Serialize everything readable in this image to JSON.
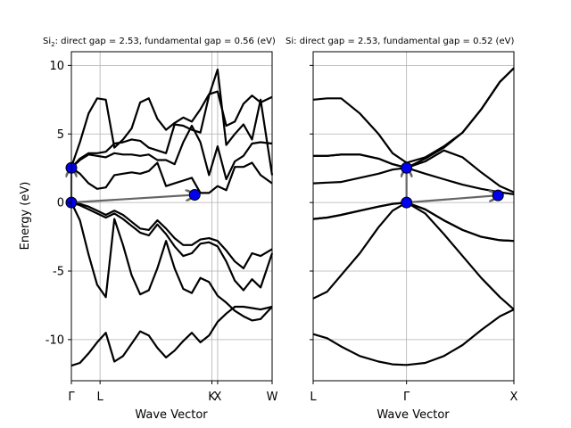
{
  "chart_data": [
    {
      "type": "line",
      "title": "Si$_2$: direct gap = 2.53, fundamental gap = 0.56 (eV)",
      "title_main": "Si",
      "title_sub": "2",
      "title_rest": ": direct gap = 2.53, fundamental gap = 0.56 (eV)",
      "xlabel": "Wave Vector",
      "ylabel": "Energy (eV)",
      "ylim": [
        -13,
        11
      ],
      "xlim": [
        0,
        7.0
      ],
      "yticks": [
        -10,
        -5,
        0,
        5,
        10
      ],
      "kpoints": [
        {
          "label": "Γ",
          "x": 0
        },
        {
          "label": "L",
          "x": 1.0
        },
        {
          "label": "K",
          "x": 4.9
        },
        {
          "label": "X",
          "x": 5.1
        },
        {
          "label": "W",
          "x": 7.0
        }
      ],
      "bands": [
        {
          "x": [
            0,
            0.3,
            0.6,
            0.9,
            1.2,
            1.5,
            1.8,
            2.1,
            2.4,
            2.7,
            3.0,
            3.3,
            3.6,
            3.9,
            4.2,
            4.5,
            4.8,
            5.1,
            5.4,
            5.7,
            6.0,
            6.3,
            6.6,
            7.0
          ],
          "y": [
            -11.9,
            -11.7,
            -11.0,
            -10.2,
            -9.5,
            -11.6,
            -11.2,
            -10.3,
            -9.4,
            -9.7,
            -10.6,
            -11.3,
            -10.8,
            -10.1,
            -9.5,
            -10.2,
            -9.7,
            -8.7,
            -8.1,
            -7.6,
            -7.6,
            -7.7,
            -7.8,
            -7.6
          ]
        },
        {
          "x": [
            0,
            0.3,
            0.6,
            0.9,
            1.2,
            1.5,
            1.8,
            2.1,
            2.4,
            2.7,
            3.0,
            3.3,
            3.6,
            3.9,
            4.2,
            4.5,
            4.8,
            5.1,
            5.4,
            5.7,
            6.0,
            6.3,
            6.6,
            7.0
          ],
          "y": [
            0,
            -1.3,
            -3.8,
            -6.0,
            -6.9,
            -1.2,
            -3.1,
            -5.3,
            -6.7,
            -6.4,
            -4.8,
            -2.8,
            -4.8,
            -6.3,
            -6.6,
            -5.5,
            -5.8,
            -6.8,
            -7.3,
            -7.9,
            -8.3,
            -8.6,
            -8.5,
            -7.6
          ]
        },
        {
          "x": [
            0,
            0.3,
            0.6,
            0.9,
            1.2,
            1.5,
            1.8,
            2.1,
            2.4,
            2.7,
            3.0,
            3.3,
            3.6,
            3.9,
            4.2,
            4.5,
            4.8,
            5.1,
            5.4,
            5.7,
            6.0,
            6.3,
            6.6,
            7.0
          ],
          "y": [
            0,
            -0.2,
            -0.5,
            -0.8,
            -1.1,
            -0.8,
            -1.2,
            -1.7,
            -2.2,
            -2.4,
            -1.6,
            -2.3,
            -3.2,
            -3.9,
            -3.7,
            -3.0,
            -2.9,
            -3.2,
            -4.3,
            -5.7,
            -6.4,
            -5.6,
            -6.2,
            -3.7
          ]
        },
        {
          "x": [
            0,
            0.3,
            0.6,
            0.9,
            1.2,
            1.5,
            1.8,
            2.1,
            2.4,
            2.7,
            3.0,
            3.3,
            3.6,
            3.9,
            4.2,
            4.5,
            4.8,
            5.1,
            5.4,
            5.7,
            6.0,
            6.3,
            6.6,
            7.0
          ],
          "y": [
            0,
            -0.1,
            -0.3,
            -0.6,
            -0.9,
            -0.6,
            -0.9,
            -1.4,
            -1.9,
            -2.0,
            -1.3,
            -1.9,
            -2.6,
            -3.1,
            -3.1,
            -2.7,
            -2.6,
            -2.8,
            -3.5,
            -4.3,
            -4.8,
            -3.7,
            -3.9,
            -3.4
          ]
        },
        {
          "x": [
            0,
            0.3,
            0.6,
            0.9,
            1.2,
            1.5,
            1.8,
            2.1,
            2.4,
            2.7,
            3.0,
            3.3,
            3.6,
            3.9,
            4.2,
            4.5,
            4.8,
            5.1,
            5.4,
            5.7,
            6.0,
            6.3,
            6.6,
            7.0
          ],
          "y": [
            2.53,
            2.1,
            1.4,
            1.0,
            1.1,
            2.0,
            2.1,
            2.2,
            2.1,
            2.3,
            2.9,
            1.2,
            1.4,
            1.6,
            1.8,
            0.7,
            0.7,
            1.2,
            0.9,
            2.6,
            2.6,
            2.9,
            2.0,
            1.4
          ]
        },
        {
          "x": [
            0,
            0.3,
            0.6,
            0.9,
            1.2,
            1.5,
            1.8,
            2.1,
            2.4,
            2.7,
            3.0,
            3.3,
            3.6,
            3.9,
            4.2,
            4.5,
            4.8,
            5.1,
            5.4,
            5.7,
            6.0,
            6.3,
            6.6,
            7.0
          ],
          "y": [
            2.53,
            3.1,
            3.5,
            3.4,
            3.3,
            3.6,
            3.5,
            3.5,
            3.4,
            3.5,
            3.1,
            3.1,
            2.8,
            4.4,
            5.6,
            4.4,
            2.0,
            4.1,
            1.7,
            3.0,
            3.4,
            4.3,
            4.4,
            4.3
          ]
        },
        {
          "x": [
            0,
            0.3,
            0.6,
            0.9,
            1.2,
            1.5,
            1.8,
            2.1,
            2.4,
            2.7,
            3.0,
            3.3,
            3.6,
            3.9,
            4.2,
            4.5,
            4.8,
            5.1,
            5.4,
            5.7,
            6.0,
            6.3,
            6.6,
            7.0
          ],
          "y": [
            2.53,
            3.2,
            3.6,
            3.6,
            3.7,
            4.3,
            4.4,
            4.6,
            4.5,
            4.0,
            3.8,
            3.6,
            5.7,
            5.6,
            5.3,
            5.1,
            7.8,
            9.7,
            4.2,
            5.0,
            5.7,
            4.6,
            7.5,
            2.0
          ]
        },
        {
          "x": [
            0,
            0.3,
            0.6,
            0.9,
            1.2,
            1.5,
            1.8,
            2.1,
            2.4,
            2.7,
            3.0,
            3.3,
            3.6,
            3.9,
            4.2,
            4.5,
            4.8,
            5.1,
            5.4,
            5.7,
            6.0,
            6.3,
            6.6,
            7.0
          ],
          "y": [
            2.6,
            4.4,
            6.5,
            7.6,
            7.5,
            4.0,
            4.6,
            5.4,
            7.3,
            7.6,
            6.1,
            5.3,
            5.8,
            6.2,
            5.9,
            6.8,
            7.9,
            8.1,
            5.6,
            5.9,
            7.2,
            7.8,
            7.3,
            7.7
          ]
        }
      ],
      "markers": [
        {
          "x": 0,
          "y": 0
        },
        {
          "x": 0,
          "y": 2.53
        },
        {
          "x": 4.3,
          "y": 0.56
        }
      ],
      "arrows": [
        {
          "from": [
            0,
            0
          ],
          "to": [
            0,
            2.53
          ]
        },
        {
          "from": [
            0,
            0
          ],
          "to": [
            4.3,
            0.56
          ]
        }
      ]
    },
    {
      "type": "line",
      "title": "Si: direct gap = 2.53, fundamental gap = 0.52 (eV)",
      "title_main": "Si",
      "title_sub": "",
      "title_rest": ": direct gap = 2.53, fundamental gap = 0.52 (eV)",
      "xlabel": "Wave Vector",
      "ylabel": "",
      "ylim": [
        -13,
        11
      ],
      "xlim": [
        0,
        2.15
      ],
      "yticks": [
        -10,
        -5,
        0,
        5,
        10
      ],
      "kpoints": [
        {
          "label": "L",
          "x": 0
        },
        {
          "label": "Γ",
          "x": 1.0
        },
        {
          "label": "X",
          "x": 2.15
        }
      ],
      "bands": [
        {
          "x": [
            0,
            0.15,
            0.3,
            0.5,
            0.7,
            0.85,
            1.0,
            1.2,
            1.4,
            1.6,
            1.8,
            2.0,
            2.15
          ],
          "y": [
            -9.6,
            -9.9,
            -10.5,
            -11.2,
            -11.6,
            -11.8,
            -11.85,
            -11.7,
            -11.2,
            -10.4,
            -9.3,
            -8.3,
            -7.8
          ]
        },
        {
          "x": [
            0,
            0.15,
            0.3,
            0.5,
            0.7,
            0.85,
            1.0,
            1.2,
            1.4,
            1.6,
            1.8,
            2.0,
            2.15
          ],
          "y": [
            -7.0,
            -6.5,
            -5.3,
            -3.7,
            -1.8,
            -0.6,
            0,
            -0.8,
            -2.3,
            -3.9,
            -5.5,
            -6.9,
            -7.8
          ]
        },
        {
          "x": [
            0,
            0.15,
            0.3,
            0.5,
            0.7,
            0.85,
            1.0,
            1.2,
            1.4,
            1.6,
            1.8,
            2.0,
            2.15
          ],
          "y": [
            -1.2,
            -1.1,
            -0.9,
            -0.6,
            -0.3,
            -0.1,
            0,
            -0.5,
            -1.3,
            -2.0,
            -2.5,
            -2.75,
            -2.8
          ]
        },
        {
          "x": [
            0,
            0.15,
            0.3,
            0.5,
            0.7,
            0.85,
            1.0,
            1.2,
            1.4,
            1.6,
            1.8,
            2.0,
            2.15
          ],
          "y": [
            -1.2,
            -1.1,
            -0.9,
            -0.6,
            -0.3,
            -0.1,
            0,
            -0.5,
            -1.3,
            -2.0,
            -2.5,
            -2.75,
            -2.8
          ]
        },
        {
          "x": [
            0,
            0.15,
            0.3,
            0.5,
            0.7,
            0.85,
            1.0,
            1.2,
            1.4,
            1.6,
            1.8,
            2.0,
            2.15
          ],
          "y": [
            1.4,
            1.45,
            1.5,
            1.8,
            2.1,
            2.4,
            2.53,
            2.1,
            1.7,
            1.3,
            1.0,
            0.75,
            0.6
          ]
        },
        {
          "x": [
            0,
            0.15,
            0.3,
            0.5,
            0.7,
            0.85,
            1.0,
            1.2,
            1.4,
            1.6,
            1.8,
            2.0,
            2.15
          ],
          "y": [
            3.4,
            3.4,
            3.5,
            3.5,
            3.2,
            2.8,
            2.53,
            3.0,
            3.8,
            3.3,
            2.2,
            1.2,
            0.75
          ]
        },
        {
          "x": [
            0,
            0.15,
            0.3,
            0.5,
            0.7,
            0.85,
            1.0,
            1.2,
            1.4,
            1.6,
            1.8,
            2.0,
            2.15
          ],
          "y": [
            3.4,
            3.4,
            3.5,
            3.5,
            3.2,
            2.8,
            2.53,
            3.2,
            4.0,
            5.1,
            6.8,
            8.8,
            9.8
          ]
        },
        {
          "x": [
            0,
            0.15,
            0.3,
            0.5,
            0.7,
            0.85,
            1.0,
            1.2,
            1.4,
            1.6,
            1.8,
            2.0,
            2.15
          ],
          "y": [
            7.5,
            7.6,
            7.6,
            6.5,
            5.0,
            3.6,
            2.9,
            3.3,
            4.1,
            5.1,
            6.8,
            8.8,
            9.8
          ]
        }
      ],
      "markers": [
        {
          "x": 1.0,
          "y": 0
        },
        {
          "x": 1.0,
          "y": 2.53
        },
        {
          "x": 1.98,
          "y": 0.52
        }
      ],
      "arrows": [
        {
          "from": [
            1.0,
            0
          ],
          "to": [
            1.0,
            2.53
          ]
        },
        {
          "from": [
            1.0,
            0
          ],
          "to": [
            1.98,
            0.52
          ]
        }
      ]
    }
  ]
}
